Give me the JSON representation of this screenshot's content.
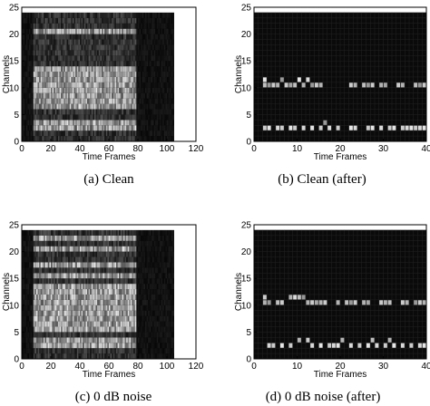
{
  "chart_data": [
    {
      "type": "heatmap",
      "caption": "(a) Clean",
      "xlabel": "Time Frames",
      "ylabel": "Channels",
      "xlim": [
        0,
        120
      ],
      "ylim": [
        0,
        25
      ],
      "xticks": [
        "0",
        "20",
        "40",
        "60",
        "80",
        "100",
        "120"
      ],
      "yticks": [
        "0",
        "5",
        "10",
        "15",
        "20",
        "25"
      ],
      "data_extent": {
        "x": [
          0,
          105
        ],
        "y": [
          0,
          24
        ]
      },
      "active_x": [
        8,
        78
      ],
      "bright_rows": [
        2,
        3,
        6,
        7,
        8,
        9,
        10,
        11,
        12,
        13,
        20
      ],
      "cells": []
    },
    {
      "type": "heatmap",
      "caption": "(b) Clean (after)",
      "xlabel": "Time Frames",
      "ylabel": "Channels",
      "xlim": [
        0,
        40
      ],
      "ylim": [
        0,
        25
      ],
      "xticks": [
        "0",
        "10",
        "20",
        "30",
        "40"
      ],
      "yticks": [
        "0",
        "5",
        "10",
        "15",
        "20",
        "25"
      ],
      "data_extent": {
        "x": [
          0,
          40
        ],
        "y": [
          0,
          24
        ]
      },
      "cells": [
        [
          2,
          11,
          0.9
        ],
        [
          2,
          10,
          0.75
        ],
        [
          3,
          10,
          0.6
        ],
        [
          4,
          10,
          0.8
        ],
        [
          5,
          10,
          0.7
        ],
        [
          6,
          11,
          0.6
        ],
        [
          7,
          10,
          0.8
        ],
        [
          8,
          10,
          0.65
        ],
        [
          9,
          10,
          0.75
        ],
        [
          10,
          11,
          0.9
        ],
        [
          11,
          10,
          0.7
        ],
        [
          12,
          11,
          0.85
        ],
        [
          13,
          10,
          0.6
        ],
        [
          14,
          10,
          0.8
        ],
        [
          15,
          10,
          0.7
        ],
        [
          22,
          10,
          0.8
        ],
        [
          23,
          10,
          0.7
        ],
        [
          25,
          10,
          0.75
        ],
        [
          26,
          10,
          0.6
        ],
        [
          27,
          10,
          0.8
        ],
        [
          29,
          10,
          0.7
        ],
        [
          30,
          10,
          0.65
        ],
        [
          33,
          10,
          0.8
        ],
        [
          34,
          10,
          0.7
        ],
        [
          37,
          10,
          0.75
        ],
        [
          38,
          10,
          0.6
        ],
        [
          39,
          10,
          0.8
        ],
        [
          2,
          2,
          0.8
        ],
        [
          3,
          2,
          0.9
        ],
        [
          5,
          2,
          0.85
        ],
        [
          6,
          2,
          0.8
        ],
        [
          8,
          2,
          0.9
        ],
        [
          9,
          2,
          0.8
        ],
        [
          11,
          2,
          0.85
        ],
        [
          13,
          2,
          0.9
        ],
        [
          15,
          2,
          0.8
        ],
        [
          16,
          3,
          0.6
        ],
        [
          17,
          2,
          0.85
        ],
        [
          19,
          2,
          0.8
        ],
        [
          22,
          2,
          0.9
        ],
        [
          23,
          2,
          0.85
        ],
        [
          26,
          2,
          0.8
        ],
        [
          27,
          2,
          0.9
        ],
        [
          29,
          2,
          0.85
        ],
        [
          31,
          2,
          0.8
        ],
        [
          32,
          2,
          0.9
        ],
        [
          34,
          2,
          0.8
        ],
        [
          35,
          2,
          0.85
        ],
        [
          36,
          2,
          0.9
        ],
        [
          37,
          2,
          0.8
        ],
        [
          38,
          2,
          0.85
        ],
        [
          39,
          2,
          0.9
        ]
      ]
    },
    {
      "type": "heatmap",
      "caption": "(c) 0 dB noise",
      "xlabel": "Time Frames",
      "ylabel": "Channels",
      "xlim": [
        0,
        120
      ],
      "ylim": [
        0,
        25
      ],
      "xticks": [
        "0",
        "20",
        "40",
        "60",
        "80",
        "100",
        "120"
      ],
      "yticks": [
        "0",
        "5",
        "10",
        "15",
        "20",
        "25"
      ],
      "data_extent": {
        "x": [
          0,
          105
        ],
        "y": [
          0,
          24
        ]
      },
      "active_x": [
        8,
        78
      ],
      "bright_rows": [
        2,
        3,
        5,
        6,
        7,
        8,
        9,
        10,
        11,
        12,
        13,
        15,
        17,
        20,
        22
      ],
      "cells": []
    },
    {
      "type": "heatmap",
      "caption": "(d) 0 dB noise (after)",
      "xlabel": "Time Frames",
      "ylabel": "Channels",
      "xlim": [
        0,
        40
      ],
      "ylim": [
        0,
        25
      ],
      "xticks": [
        "0",
        "10",
        "20",
        "30",
        "40"
      ],
      "yticks": [
        "0",
        "5",
        "10",
        "15",
        "20",
        "25"
      ],
      "data_extent": {
        "x": [
          0,
          40
        ],
        "y": [
          0,
          24
        ]
      },
      "cells": [
        [
          2,
          11,
          0.8
        ],
        [
          2,
          10,
          0.7
        ],
        [
          3,
          10,
          0.6
        ],
        [
          5,
          10,
          0.75
        ],
        [
          6,
          10,
          0.8
        ],
        [
          8,
          11,
          0.7
        ],
        [
          9,
          11,
          0.85
        ],
        [
          10,
          11,
          0.75
        ],
        [
          11,
          11,
          0.6
        ],
        [
          12,
          10,
          0.7
        ],
        [
          13,
          10,
          0.8
        ],
        [
          14,
          10,
          0.65
        ],
        [
          15,
          10,
          0.7
        ],
        [
          16,
          10,
          0.8
        ],
        [
          19,
          10,
          0.7
        ],
        [
          21,
          10,
          0.75
        ],
        [
          22,
          10,
          0.6
        ],
        [
          23,
          10,
          0.8
        ],
        [
          25,
          10,
          0.7
        ],
        [
          26,
          10,
          0.65
        ],
        [
          29,
          10,
          0.8
        ],
        [
          30,
          10,
          0.7
        ],
        [
          31,
          10,
          0.75
        ],
        [
          34,
          10,
          0.8
        ],
        [
          35,
          10,
          0.7
        ],
        [
          37,
          10,
          0.6
        ],
        [
          38,
          10,
          0.8
        ],
        [
          39,
          10,
          0.7
        ],
        [
          3,
          2,
          0.85
        ],
        [
          4,
          2,
          0.8
        ],
        [
          6,
          2,
          0.9
        ],
        [
          8,
          2,
          0.8
        ],
        [
          10,
          3,
          0.7
        ],
        [
          12,
          3,
          0.8
        ],
        [
          13,
          2,
          0.85
        ],
        [
          15,
          2,
          0.9
        ],
        [
          17,
          2,
          0.8
        ],
        [
          18,
          2,
          0.85
        ],
        [
          19,
          2,
          0.9
        ],
        [
          20,
          3,
          0.7
        ],
        [
          22,
          2,
          0.85
        ],
        [
          24,
          2,
          0.8
        ],
        [
          26,
          2,
          0.9
        ],
        [
          27,
          3,
          0.75
        ],
        [
          28,
          2,
          0.85
        ],
        [
          30,
          2,
          0.8
        ],
        [
          31,
          3,
          0.7
        ],
        [
          32,
          2,
          0.9
        ],
        [
          34,
          2,
          0.85
        ],
        [
          36,
          2,
          0.8
        ],
        [
          38,
          2,
          0.85
        ],
        [
          39,
          2,
          0.9
        ]
      ]
    }
  ]
}
